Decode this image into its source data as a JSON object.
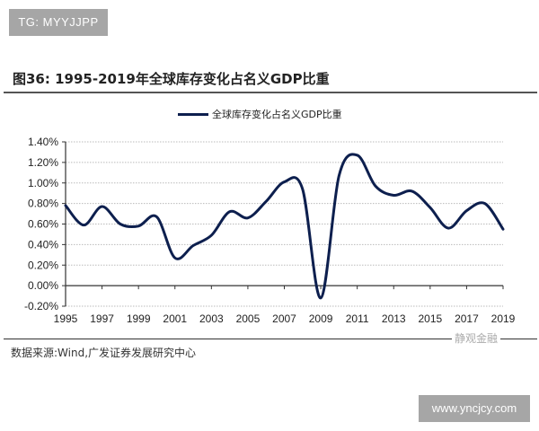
{
  "watermark_top": "TG: MYYJJPP",
  "figure_title": "图36:  1995-2019年全球库存变化占名义GDP比重",
  "source_note": "数据来源:Wind,广发证券发展研究中心",
  "watermark_mid": "静观金融",
  "watermark_bottom": "www.yncjcy.com",
  "line_color": "#0d1f4e",
  "chart_data": {
    "type": "line",
    "title": "1995-2019年全球库存变化占名义GDP比重",
    "xlabel": "",
    "ylabel": "",
    "ylim": [
      -0.2,
      1.4
    ],
    "yticks": [
      -0.2,
      0.0,
      0.2,
      0.4,
      0.6,
      0.8,
      1.0,
      1.2,
      1.4
    ],
    "ytick_labels": [
      "-0.20%",
      "0.00%",
      "0.20%",
      "0.40%",
      "0.60%",
      "0.80%",
      "1.00%",
      "1.20%",
      "1.40%"
    ],
    "xtick_labels": [
      "1995",
      "1997",
      "1999",
      "2001",
      "2003",
      "2005",
      "2007",
      "2009",
      "2011",
      "2013",
      "2015",
      "2017",
      "2019"
    ],
    "grid": true,
    "legend_position": "top-center",
    "x": [
      1995,
      1996,
      1997,
      1998,
      1999,
      2000,
      2001,
      2002,
      2003,
      2004,
      2005,
      2006,
      2007,
      2008,
      2009,
      2010,
      2011,
      2012,
      2013,
      2014,
      2015,
      2016,
      2017,
      2018,
      2019
    ],
    "series": [
      {
        "name": "全球库存变化占名义GDP比重",
        "values": [
          0.78,
          0.59,
          0.77,
          0.6,
          0.58,
          0.67,
          0.27,
          0.39,
          0.49,
          0.72,
          0.66,
          0.82,
          1.01,
          0.94,
          -0.12,
          1.07,
          1.27,
          0.97,
          0.88,
          0.92,
          0.76,
          0.56,
          0.73,
          0.8,
          0.55
        ]
      }
    ]
  }
}
